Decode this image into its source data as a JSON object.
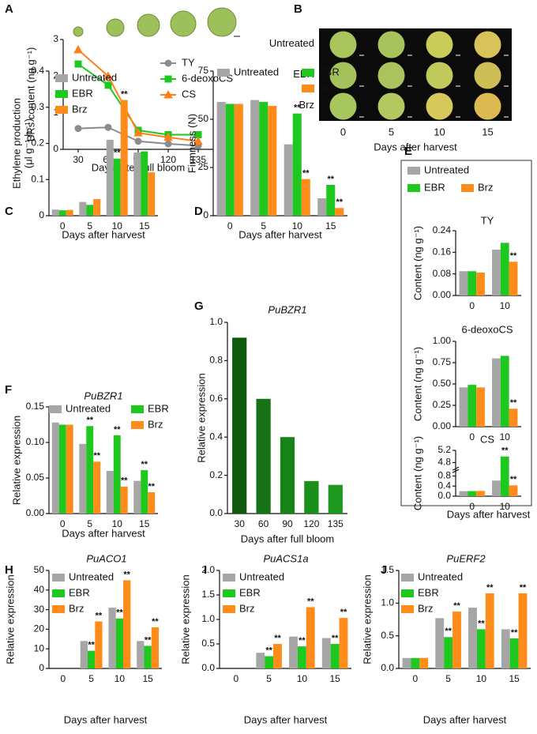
{
  "chart_data": [
    {
      "type": "line",
      "panel": "A",
      "xlabel": "Days after full bloom",
      "ylabel": "BRs content (ng g⁻¹)",
      "categories": [
        30,
        60,
        90,
        120,
        135
      ],
      "ylim": [
        0,
        3
      ],
      "yticks": [
        0,
        1,
        2,
        3
      ],
      "series": [
        {
          "name": "TY",
          "color": "#8c8c8c",
          "marker": "circle",
          "values": [
            0.57,
            0.6,
            0.22,
            0.15,
            0.1
          ]
        },
        {
          "name": "6-deoxoCS",
          "color": "#1ec81e",
          "marker": "square",
          "values": [
            2.33,
            1.75,
            0.52,
            0.4,
            0.4
          ]
        },
        {
          "name": "CS",
          "color": "#ff7f1a",
          "marker": "triangle",
          "values": [
            2.72,
            2.0,
            0.45,
            0.33,
            0.22
          ]
        }
      ]
    },
    {
      "type": "image-grid",
      "panel": "B",
      "rows": [
        "Untreated",
        "EBR",
        "Brz"
      ],
      "columns": [
        0,
        5,
        10,
        15
      ],
      "xlabel": "Days after harvest"
    },
    {
      "type": "bar",
      "panel": "C",
      "xlabel": "Days after harvest",
      "ylabel": [
        "Ethylene production",
        "(μl g⁻¹ h⁻¹)"
      ],
      "categories": [
        0,
        5,
        10,
        15
      ],
      "ylim": [
        0,
        0.4
      ],
      "yticks": [
        0,
        0.1,
        0.2,
        0.3,
        0.4
      ],
      "series": [
        {
          "name": "Untreated",
          "color": "#a6a6a6",
          "values": [
            0.017,
            0.038,
            0.21,
            0.175
          ],
          "significance": [
            null,
            null,
            null,
            null
          ]
        },
        {
          "name": "EBR",
          "color": "#1ec81e",
          "values": [
            0.015,
            0.03,
            0.158,
            0.178
          ],
          "significance": [
            null,
            null,
            "**",
            null
          ]
        },
        {
          "name": "Brz",
          "color": "#ff8c1a",
          "values": [
            0.016,
            0.046,
            0.32,
            0.12
          ],
          "significance": [
            null,
            null,
            "**",
            null
          ]
        }
      ]
    },
    {
      "type": "bar",
      "panel": "D",
      "xlabel": "Days after harvest",
      "ylabel": "Firmness (N)",
      "categories": [
        0,
        5,
        10,
        15
      ],
      "ylim": [
        0,
        75
      ],
      "yticks": [
        0,
        25,
        50,
        75
      ],
      "series": [
        {
          "name": "Untreated",
          "color": "#a6a6a6",
          "values": [
            59,
            60,
            37,
            9
          ],
          "significance": [
            null,
            null,
            null,
            null
          ]
        },
        {
          "name": "EBR",
          "color": "#1ec81e",
          "values": [
            58,
            59,
            53,
            16
          ],
          "significance": [
            null,
            null,
            "**",
            "**"
          ]
        },
        {
          "name": "Brz",
          "color": "#ff8c1a",
          "values": [
            58,
            57,
            19,
            4
          ],
          "significance": [
            null,
            null,
            "**",
            "**"
          ]
        }
      ]
    },
    {
      "type": "bar",
      "panel": "E",
      "title": "TY",
      "ylabel": "Content (ng g⁻¹)",
      "categories": [
        0,
        10
      ],
      "ylim": [
        0,
        0.24
      ],
      "yticks": [
        {
          "value": 0,
          "label": "0.00"
        },
        0.08,
        0.16,
        0.24
      ],
      "series": [
        {
          "name": "Untreated",
          "color": "#a6a6a6",
          "values": [
            0.09,
            0.17
          ],
          "significance": [
            null,
            null
          ]
        },
        {
          "name": "EBR",
          "color": "#1ec81e",
          "values": [
            0.09,
            0.195
          ],
          "significance": [
            null,
            null
          ]
        },
        {
          "name": "Brz",
          "color": "#ff8c1a",
          "values": [
            0.085,
            0.125
          ],
          "significance": [
            null,
            "**"
          ]
        }
      ]
    },
    {
      "type": "bar",
      "title": "6-deoxoCS",
      "ylabel": "Content (ng g⁻¹)",
      "categories": [
        0,
        10
      ],
      "ylim": [
        0,
        1
      ],
      "yticks": [
        {
          "value": 0,
          "label": "0.00"
        },
        0.25,
        {
          "value": 0.5,
          "label": "0.50"
        },
        0.75,
        {
          "value": 1,
          "label": "1.00"
        }
      ],
      "series": [
        {
          "color": "#a6a6a6",
          "values": [
            0.46,
            0.8
          ],
          "significance": [
            null,
            null
          ]
        },
        {
          "color": "#1ec81e",
          "values": [
            0.49,
            0.83
          ],
          "significance": [
            null,
            null
          ]
        },
        {
          "color": "#ff8c1a",
          "values": [
            0.46,
            0.21
          ],
          "significance": [
            null,
            "**"
          ]
        }
      ]
    },
    {
      "type": "bar",
      "title": "CS",
      "ylabel": "Content (ng g⁻¹)",
      "xlabel": "Days after harvest",
      "categories": [
        0,
        10
      ],
      "ylim": [
        0,
        5.2
      ],
      "ybreak": [
        1.0,
        4.6
      ],
      "yticks": [
        {
          "value": 0,
          "label": "0.0"
        },
        0.4,
        0.8,
        4.8,
        5.2
      ],
      "series": [
        {
          "color": "#a6a6a6",
          "values": [
            0.2,
            0.62
          ],
          "significance": [
            null,
            null
          ]
        },
        {
          "color": "#1ec81e",
          "values": [
            0.2,
            5.0
          ],
          "significance": [
            null,
            "**"
          ]
        },
        {
          "color": "#ff8c1a",
          "values": [
            0.21,
            0.43
          ],
          "significance": [
            null,
            "**"
          ]
        }
      ]
    },
    {
      "type": "bar",
      "panel": "F",
      "title": "PuBZR1",
      "xlabel": "Days after harvest",
      "ylabel": "Relative expression",
      "categories": [
        0,
        5,
        10,
        15
      ],
      "ylim": [
        0,
        0.15
      ],
      "yticks": [
        {
          "value": 0,
          "label": "0.00"
        },
        0.05,
        {
          "value": 0.1,
          "label": "0.10"
        },
        0.15
      ],
      "series": [
        {
          "name": "Untreated",
          "color": "#a6a6a6",
          "values": [
            0.128,
            0.098,
            0.06,
            0.046
          ],
          "significance": [
            null,
            null,
            null,
            null
          ]
        },
        {
          "name": "EBR",
          "color": "#1ec81e",
          "values": [
            0.125,
            0.123,
            0.11,
            0.061
          ],
          "significance": [
            null,
            "**",
            "**",
            "**"
          ]
        },
        {
          "name": "Brz",
          "color": "#ff8c1a",
          "values": [
            0.125,
            0.073,
            0.038,
            0.03
          ],
          "significance": [
            null,
            "**",
            "**",
            "**"
          ]
        }
      ]
    },
    {
      "type": "bar",
      "panel": "G",
      "title": "PuBZR1",
      "xlabel": "Days after full bloom",
      "ylabel": "Relative expression",
      "categories": [
        30,
        60,
        90,
        120,
        135
      ],
      "ylim": [
        0,
        1
      ],
      "yticks": [
        {
          "value": 0,
          "label": "0.0"
        },
        0.2,
        0.4,
        0.6,
        0.8,
        {
          "value": 1,
          "label": "1.0"
        }
      ],
      "series": [
        {
          "colors": [
            "#0d5a0d",
            "#147314",
            "#178417",
            "#1b8f1b",
            "#1e981e"
          ],
          "values": [
            0.92,
            0.6,
            0.4,
            0.17,
            0.15
          ]
        }
      ]
    },
    {
      "type": "bar",
      "panel": "H",
      "title": "PuACO1",
      "xlabel": "Days after harvest",
      "ylabel": "Relative expression",
      "categories": [
        0,
        5,
        10,
        15
      ],
      "ylim": [
        0,
        50
      ],
      "yticks": [
        0,
        10,
        20,
        30,
        40,
        50
      ],
      "series": [
        {
          "name": "Untreated",
          "color": "#a6a6a6",
          "values": [
            0,
            14,
            31,
            14
          ],
          "significance": [
            null,
            null,
            null,
            null
          ]
        },
        {
          "name": "EBR",
          "color": "#1ec81e",
          "values": [
            0,
            9,
            25.5,
            11.5
          ],
          "significance": [
            null,
            "**",
            "**",
            "**"
          ]
        },
        {
          "name": "Brz",
          "color": "#ff8c1a",
          "values": [
            0,
            24,
            45,
            21
          ],
          "significance": [
            null,
            "**",
            "**",
            "**"
          ]
        }
      ]
    },
    {
      "type": "bar",
      "panel": "I",
      "title": "PuACS1a",
      "xlabel": "Days after harvest",
      "ylabel": "Relative expression",
      "categories": [
        0,
        5,
        10,
        15
      ],
      "ylim": [
        0,
        2
      ],
      "yticks": [
        {
          "value": 0,
          "label": "0.0"
        },
        0.5,
        {
          "value": 1,
          "label": "1.0"
        },
        1.5,
        {
          "value": 2,
          "label": "2.0"
        }
      ],
      "series": [
        {
          "name": "Untreated",
          "color": "#a6a6a6",
          "values": [
            0,
            0.32,
            0.65,
            0.62
          ],
          "significance": [
            null,
            null,
            null,
            null
          ]
        },
        {
          "name": "EBR",
          "color": "#1ec81e",
          "values": [
            0,
            0.25,
            0.45,
            0.5
          ],
          "significance": [
            null,
            "**",
            "**",
            "**"
          ]
        },
        {
          "name": "Brz",
          "color": "#ff8c1a",
          "values": [
            0,
            0.5,
            1.25,
            1.03
          ],
          "significance": [
            null,
            "**",
            "**",
            "**"
          ]
        }
      ]
    },
    {
      "type": "bar",
      "panel": "J",
      "title": "PuERF2",
      "xlabel": "Days after harvest",
      "ylabel": "Relative expression",
      "categories": [
        0,
        5,
        10,
        15
      ],
      "ylim": [
        0,
        1.5
      ],
      "yticks": [
        {
          "value": 0,
          "label": "0.0"
        },
        0.5,
        {
          "value": 1,
          "label": "1.0"
        },
        1.5
      ],
      "series": [
        {
          "name": "Untreated",
          "color": "#a6a6a6",
          "values": [
            0.16,
            0.77,
            0.93,
            0.6
          ],
          "significance": [
            null,
            null,
            null,
            null
          ]
        },
        {
          "name": "EBR",
          "color": "#1ec81e",
          "values": [
            0.16,
            0.48,
            0.6,
            0.46
          ],
          "significance": [
            null,
            "**",
            "**",
            "**"
          ]
        },
        {
          "name": "Brz",
          "color": "#ff8c1a",
          "values": [
            0.16,
            0.87,
            1.15,
            1.15
          ],
          "significance": [
            null,
            "**",
            "**",
            "**"
          ]
        }
      ]
    }
  ]
}
